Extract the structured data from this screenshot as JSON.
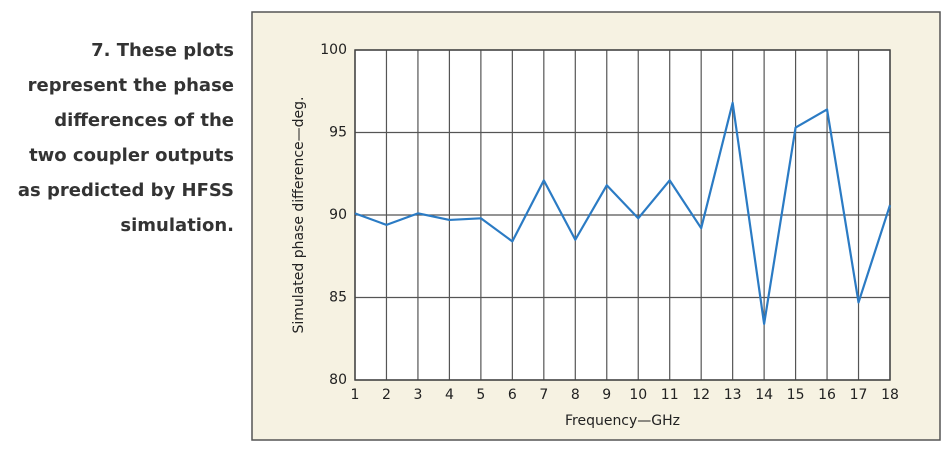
{
  "caption": [
    "7. These plots",
    "represent the phase",
    "differences of the",
    "two coupler outputs",
    "as predicted by HFSS",
    "simulation."
  ],
  "chart_data": {
    "type": "line",
    "x_label": "Frequency—GHz",
    "y_label": "Simulated phase difference—deg.",
    "x": [
      1,
      2,
      3,
      4,
      5,
      6,
      7,
      8,
      9,
      10,
      11,
      12,
      13,
      14,
      15,
      16,
      17,
      18
    ],
    "series": [
      {
        "color": "#2b7bc4",
        "values": [
          90.1,
          89.4,
          90.1,
          89.7,
          89.8,
          88.4,
          92.1,
          88.5,
          91.8,
          89.8,
          92.1,
          89.2,
          96.8,
          83.4,
          95.3,
          96.4,
          84.7,
          90.6
        ]
      }
    ],
    "xlim": [
      1,
      18
    ],
    "xticks": [
      1,
      2,
      3,
      4,
      5,
      6,
      7,
      8,
      9,
      10,
      11,
      12,
      13,
      14,
      15,
      16,
      17,
      18
    ],
    "ylim": [
      80,
      100
    ],
    "yticks": [
      80,
      85,
      90,
      95,
      100
    ],
    "grid": true
  }
}
